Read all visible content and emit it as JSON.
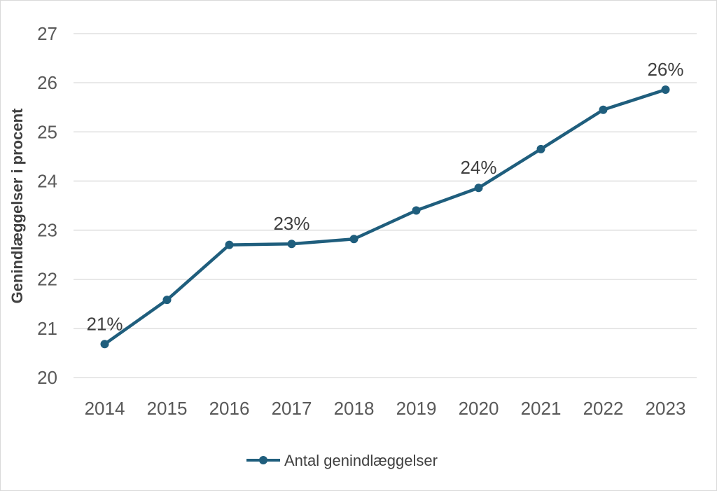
{
  "chart_data": {
    "type": "line",
    "ylabel": "Genindlæggelser i procent",
    "xlabel": "",
    "ylim": [
      20,
      27
    ],
    "yticks": [
      "20",
      "21",
      "22",
      "23",
      "24",
      "25",
      "26",
      "27"
    ],
    "grid": true,
    "legend_position": "bottom",
    "categories": [
      "2014",
      "2015",
      "2016",
      "2017",
      "2018",
      "2019",
      "2020",
      "2021",
      "2022",
      "2023"
    ],
    "series": [
      {
        "name": "Antal genindlæggelser",
        "color": "#1f5e7d",
        "values": [
          20.68,
          21.58,
          22.7,
          22.72,
          22.82,
          23.4,
          23.86,
          24.65,
          25.45,
          25.86
        ]
      }
    ],
    "data_labels": [
      {
        "index": 0,
        "text": "21%"
      },
      {
        "index": 3,
        "text": "23%"
      },
      {
        "index": 6,
        "text": "24%"
      },
      {
        "index": 9,
        "text": "26%"
      }
    ]
  }
}
